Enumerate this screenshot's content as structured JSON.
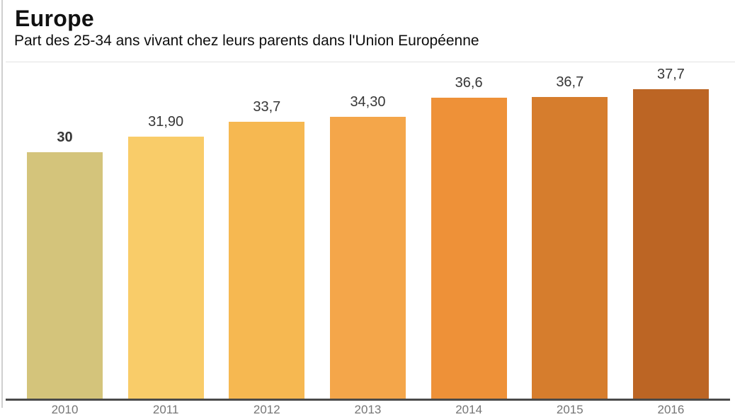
{
  "header": {
    "title": "Europe",
    "subtitle": "Part des 25-34 ans vivant chez leurs parents dans l'Union Européenne"
  },
  "chart_data": {
    "type": "bar",
    "title": "Europe",
    "subtitle": "Part des 25-34 ans vivant chez leurs parents dans l'Union Européenne",
    "categories": [
      "2010",
      "2011",
      "2012",
      "2013",
      "2014",
      "2015",
      "2016"
    ],
    "values": [
      30,
      31.9,
      33.7,
      34.3,
      36.6,
      36.7,
      37.7
    ],
    "value_labels": [
      "30",
      "31,90",
      "33,7",
      "34,30",
      "36,6",
      "36,7",
      "37,7"
    ],
    "bold_value_index": 0,
    "bar_colors": [
      "#d4c47b",
      "#f9cc69",
      "#f6b851",
      "#f4a64a",
      "#ee9138",
      "#d67d2d",
      "#bc6524"
    ],
    "xlabel": "",
    "ylabel": "",
    "ylim": [
      0,
      40
    ],
    "grid": false,
    "legend": false,
    "axis_color": "#4a4a4a",
    "tick_label_color": "#757575",
    "value_label_color": "#373737"
  }
}
